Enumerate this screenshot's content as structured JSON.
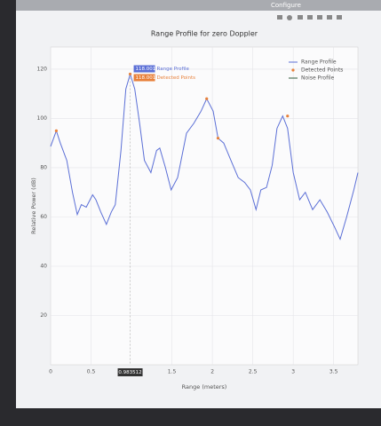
{
  "toolbar": {
    "title": "Configure"
  },
  "chart_data": {
    "type": "line",
    "title": "Range Profile for zero Doppler",
    "xlabel": "Range (meters)",
    "ylabel": "Relative Power (dB)",
    "xlim": [
      0,
      3.8
    ],
    "ylim": [
      0,
      129
    ],
    "xticks": [
      0,
      0.5,
      1.5,
      2,
      2.5,
      3,
      3.5
    ],
    "yticks": [
      20,
      40,
      60,
      80,
      100,
      120
    ],
    "grid": true,
    "legend": "top-right",
    "series": [
      {
        "name": "Range Profile",
        "color": "#5b6fd6",
        "mode": "line",
        "x": [
          0,
          0.07,
          0.12,
          0.2,
          0.27,
          0.33,
          0.38,
          0.44,
          0.52,
          0.56,
          0.62,
          0.69,
          0.75,
          0.8,
          0.87,
          0.93,
          0.983512,
          1.04,
          1.1,
          1.16,
          1.24,
          1.31,
          1.35,
          1.42,
          1.49,
          1.57,
          1.68,
          1.77,
          1.86,
          1.93,
          2.01,
          2.07,
          2.14,
          2.23,
          2.32,
          2.4,
          2.47,
          2.54,
          2.6,
          2.67,
          2.74,
          2.8,
          2.87,
          2.93,
          3.0,
          3.08,
          3.15,
          3.24,
          3.33,
          3.42,
          3.51,
          3.58,
          3.66,
          3.75,
          3.8
        ],
        "values": [
          88.6,
          95,
          90,
          83,
          70,
          61,
          65,
          64,
          69,
          67,
          62,
          57,
          62,
          65,
          87,
          112,
          118.001,
          112,
          98,
          83,
          78,
          87,
          88,
          80,
          71,
          76,
          94,
          98,
          103,
          108,
          103,
          92,
          90,
          83,
          76,
          74,
          71,
          63,
          71,
          72,
          81,
          96,
          101,
          96,
          78,
          67,
          70,
          63,
          67,
          62,
          56,
          51,
          60,
          71,
          78
        ]
      },
      {
        "name": "Detected Points",
        "color": "#e8803a",
        "mode": "markers",
        "x": [
          0.07,
          0.983512,
          1.93,
          2.07,
          2.93
        ],
        "values": [
          95,
          118.001,
          108,
          92,
          101
        ]
      },
      {
        "name": "Noise Profile",
        "color": "#2f5a3a",
        "mode": "line",
        "x": [],
        "values": []
      }
    ]
  }
}
